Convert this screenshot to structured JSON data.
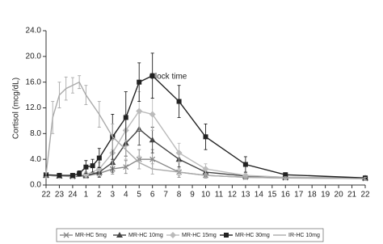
{
  "chart_data": {
    "type": "line",
    "y_label": "Cortisol (mcg/dL)",
    "x_label": "Clock time",
    "xlim": [
      0,
      24
    ],
    "xticks": [
      {
        "value": 0,
        "label": "22"
      },
      {
        "value": 1,
        "label": "23"
      },
      {
        "value": 2,
        "label": "24"
      },
      {
        "value": 3,
        "label": "1"
      },
      {
        "value": 4,
        "label": "2"
      },
      {
        "value": 5,
        "label": "3"
      },
      {
        "value": 6,
        "label": "4"
      },
      {
        "value": 7,
        "label": "5"
      },
      {
        "value": 8,
        "label": "6"
      },
      {
        "value": 9,
        "label": "7"
      },
      {
        "value": 10,
        "label": "8"
      },
      {
        "value": 11,
        "label": "9"
      },
      {
        "value": 12,
        "label": "10"
      },
      {
        "value": 13,
        "label": "11"
      },
      {
        "value": 14,
        "label": "12"
      },
      {
        "value": 15,
        "label": "13"
      },
      {
        "value": 16,
        "label": "14"
      },
      {
        "value": 17,
        "label": "15"
      },
      {
        "value": 18,
        "label": "16"
      },
      {
        "value": 19,
        "label": "17"
      },
      {
        "value": 20,
        "label": "18"
      },
      {
        "value": 21,
        "label": "19"
      },
      {
        "value": 22,
        "label": "20"
      },
      {
        "value": 23,
        "label": "21"
      },
      {
        "value": 24,
        "label": "22"
      }
    ],
    "ylim": [
      0,
      24
    ],
    "yticks": [
      {
        "value": 0,
        "label": "0.0"
      },
      {
        "value": 4,
        "label": "4.0"
      },
      {
        "value": 8,
        "label": "8.0"
      },
      {
        "value": 12,
        "label": "12.0"
      },
      {
        "value": 16,
        "label": "16.0"
      },
      {
        "value": 20,
        "label": "20.0"
      },
      {
        "value": 24,
        "label": "24.0"
      }
    ],
    "series": [
      {
        "name": "MR-HC 5mg",
        "color": "#888888",
        "marker": "x",
        "x": [
          0,
          1,
          2,
          3,
          4,
          5,
          6,
          7,
          8,
          10,
          12,
          15,
          18,
          24
        ],
        "values": [
          1.5,
          1.4,
          1.3,
          1.4,
          1.8,
          2.5,
          2.8,
          4.0,
          4.0,
          2.0,
          1.5,
          1.2,
          1.1,
          1.0
        ],
        "errors": [
          0.2,
          0.2,
          0.2,
          0.3,
          0.5,
          0.8,
          1.0,
          1.5,
          1.5,
          0.8,
          0.4,
          0.3,
          0.2,
          0.2
        ]
      },
      {
        "name": "MR-HC 10mg",
        "color": "#444444",
        "marker": "triangle",
        "x": [
          0,
          1,
          2,
          3,
          4,
          5,
          6,
          7,
          8,
          10,
          12,
          15,
          18,
          24
        ],
        "values": [
          1.5,
          1.4,
          1.4,
          1.5,
          2.0,
          3.5,
          6.5,
          8.7,
          7.0,
          4.0,
          2.0,
          1.4,
          1.2,
          1.1
        ],
        "errors": [
          0.2,
          0.2,
          0.2,
          0.4,
          0.8,
          1.5,
          2.0,
          2.5,
          2.0,
          1.2,
          0.6,
          0.3,
          0.2,
          0.2
        ]
      },
      {
        "name": "MR-HC 15mg",
        "color": "#bbbbbb",
        "marker": "diamond",
        "x": [
          0,
          1,
          2,
          3,
          4,
          5,
          6,
          7,
          8,
          10,
          12,
          15,
          18,
          24
        ],
        "values": [
          1.5,
          1.4,
          1.4,
          1.6,
          2.5,
          5.0,
          8.5,
          11.5,
          11.0,
          5.0,
          2.5,
          1.5,
          1.2,
          1.1
        ],
        "errors": [
          0.2,
          0.2,
          0.2,
          0.5,
          1.0,
          2.0,
          2.5,
          3.0,
          2.5,
          1.5,
          0.8,
          0.4,
          0.2,
          0.2
        ]
      },
      {
        "name": "MR-HC 30mg",
        "color": "#222222",
        "marker": "square",
        "x": [
          0,
          1,
          2,
          2.5,
          3,
          3.5,
          4,
          5,
          6,
          7,
          8,
          10,
          12,
          15,
          18,
          24
        ],
        "values": [
          1.6,
          1.5,
          1.5,
          1.8,
          2.8,
          3.0,
          4.2,
          7.5,
          10.5,
          16.0,
          17.0,
          13.0,
          7.5,
          3.2,
          1.6,
          1.1
        ],
        "errors": [
          0.2,
          0.2,
          0.2,
          0.4,
          1.0,
          1.0,
          1.5,
          3.5,
          4.0,
          3.0,
          3.5,
          2.5,
          2.0,
          1.2,
          0.3,
          0.2
        ]
      },
      {
        "name": "IR-HC 10mg",
        "color": "#aaaaaa",
        "marker": "none",
        "x": [
          0,
          0.5,
          1,
          1.5,
          2,
          2.5,
          3,
          4,
          5,
          6,
          7,
          8,
          10,
          12,
          15,
          18,
          24
        ],
        "values": [
          1.6,
          10.5,
          14.0,
          15.0,
          15.5,
          16.0,
          14.0,
          11.0,
          7.5,
          5.5,
          3.5,
          2.5,
          2.0,
          1.5,
          1.2,
          1.1,
          1.0
        ],
        "errors": [
          0.3,
          2.5,
          2.0,
          1.8,
          1.2,
          1.0,
          1.5,
          2.0,
          2.0,
          1.5,
          1.0,
          0.8,
          0.5,
          0.3,
          0.2,
          0.2,
          0.2
        ]
      }
    ]
  }
}
